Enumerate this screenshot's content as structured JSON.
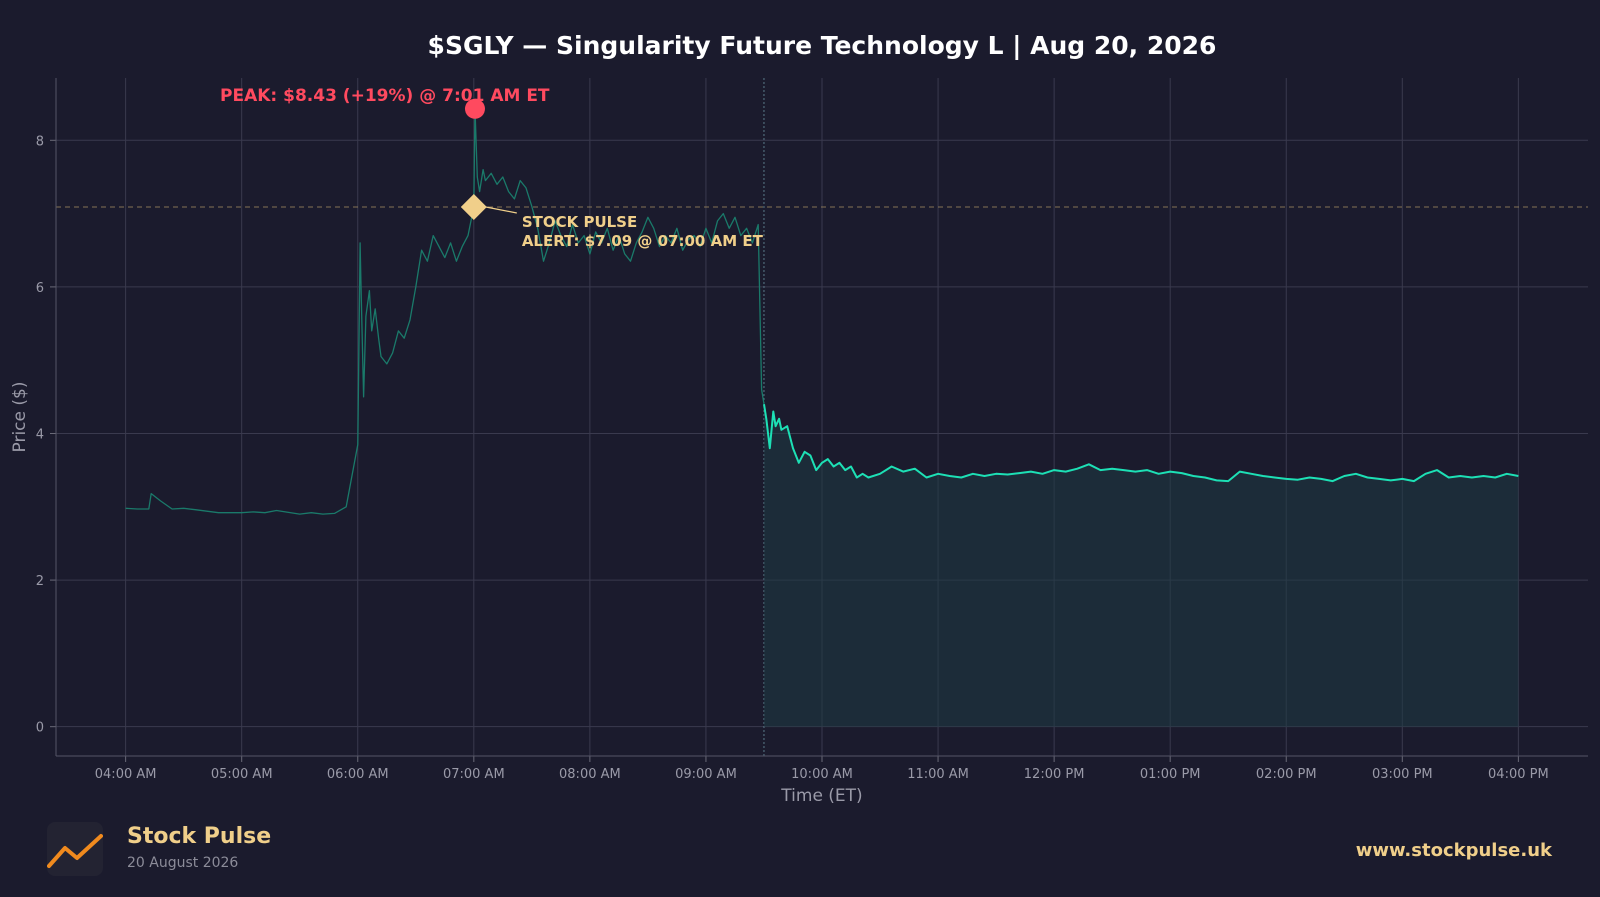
{
  "chart_data": {
    "type": "line",
    "title": "$SGLY — Singularity Future Technology L  |  Aug 20, 2026",
    "xlabel": "Time (ET)",
    "ylabel": "Price ($)",
    "ylim": [
      -0.4,
      8.85
    ],
    "y_ticks": [
      0,
      2,
      4,
      6,
      8
    ],
    "x_ticks": [
      {
        "t": 4,
        "label": "04:00 AM"
      },
      {
        "t": 5,
        "label": "05:00 AM"
      },
      {
        "t": 6,
        "label": "06:00 AM"
      },
      {
        "t": 7,
        "label": "07:00 AM"
      },
      {
        "t": 8,
        "label": "08:00 AM"
      },
      {
        "t": 9,
        "label": "09:00 AM"
      },
      {
        "t": 10,
        "label": "10:00 AM"
      },
      {
        "t": 11,
        "label": "11:00 AM"
      },
      {
        "t": 12,
        "label": "12:00 PM"
      },
      {
        "t": 13,
        "label": "01:00 PM"
      },
      {
        "t": 14,
        "label": "02:00 PM"
      },
      {
        "t": 15,
        "label": "03:00 PM"
      },
      {
        "t": 16,
        "label": "04:00 PM"
      }
    ],
    "xlim": [
      3.4,
      16.6
    ],
    "grid": true,
    "market_open_hour": 9.5,
    "series": [
      {
        "segment": "premarket",
        "color": "#1a7a6a",
        "x": [
          4.0,
          4.1,
          4.2,
          4.22,
          4.3,
          4.4,
          4.5,
          4.6,
          4.8,
          5.0,
          5.1,
          5.2,
          5.3,
          5.5,
          5.6,
          5.7,
          5.8,
          5.9,
          6.0,
          6.02,
          6.03,
          6.05,
          6.07,
          6.1,
          6.12,
          6.15,
          6.18,
          6.2,
          6.25,
          6.3,
          6.35,
          6.4,
          6.45,
          6.5,
          6.55,
          6.6,
          6.65,
          6.7,
          6.75,
          6.8,
          6.85,
          6.9,
          6.95,
          7.0,
          7.01,
          7.03,
          7.05,
          7.08,
          7.1,
          7.15,
          7.2,
          7.25,
          7.3,
          7.35,
          7.4,
          7.45,
          7.5,
          7.55,
          7.6,
          7.65,
          7.7,
          7.75,
          7.8,
          7.85,
          7.9,
          7.95,
          8.0,
          8.05,
          8.1,
          8.15,
          8.2,
          8.25,
          8.3,
          8.35,
          8.4,
          8.45,
          8.5,
          8.55,
          8.6,
          8.65,
          8.7,
          8.75,
          8.8,
          8.85,
          8.9,
          8.95,
          9.0,
          9.05,
          9.1,
          9.15,
          9.2,
          9.25,
          9.3,
          9.35,
          9.4,
          9.45,
          9.48,
          9.5
        ],
        "y": [
          2.98,
          2.97,
          2.97,
          3.18,
          3.08,
          2.97,
          2.98,
          2.96,
          2.92,
          2.92,
          2.93,
          2.92,
          2.95,
          2.9,
          2.92,
          2.9,
          2.91,
          3.0,
          3.85,
          6.6,
          5.9,
          4.5,
          5.6,
          5.95,
          5.4,
          5.7,
          5.3,
          5.05,
          4.95,
          5.1,
          5.4,
          5.3,
          5.55,
          6.0,
          6.5,
          6.35,
          6.7,
          6.55,
          6.4,
          6.6,
          6.35,
          6.55,
          6.7,
          7.09,
          8.43,
          7.5,
          7.3,
          7.6,
          7.45,
          7.55,
          7.4,
          7.5,
          7.3,
          7.2,
          7.45,
          7.35,
          7.1,
          6.8,
          6.35,
          6.6,
          6.9,
          6.7,
          6.55,
          6.85,
          6.6,
          6.7,
          6.45,
          6.75,
          6.6,
          6.8,
          6.5,
          6.7,
          6.45,
          6.35,
          6.6,
          6.75,
          6.95,
          6.8,
          6.55,
          6.7,
          6.6,
          6.8,
          6.5,
          6.65,
          6.7,
          6.55,
          6.8,
          6.6,
          6.9,
          7.0,
          6.8,
          6.95,
          6.7,
          6.8,
          6.6,
          6.85,
          4.6,
          4.4
        ]
      },
      {
        "segment": "regular",
        "color": "#1de0b5",
        "x": [
          9.5,
          9.52,
          9.55,
          9.58,
          9.6,
          9.63,
          9.65,
          9.7,
          9.75,
          9.8,
          9.85,
          9.9,
          9.95,
          10.0,
          10.05,
          10.1,
          10.15,
          10.2,
          10.25,
          10.3,
          10.35,
          10.4,
          10.5,
          10.6,
          10.7,
          10.8,
          10.9,
          11.0,
          11.1,
          11.2,
          11.3,
          11.4,
          11.5,
          11.6,
          11.7,
          11.8,
          11.9,
          12.0,
          12.1,
          12.2,
          12.3,
          12.4,
          12.5,
          12.6,
          12.7,
          12.8,
          12.9,
          13.0,
          13.1,
          13.2,
          13.3,
          13.4,
          13.5,
          13.6,
          13.7,
          13.8,
          13.9,
          14.0,
          14.1,
          14.2,
          14.3,
          14.4,
          14.5,
          14.6,
          14.7,
          14.8,
          14.9,
          15.0,
          15.1,
          15.2,
          15.3,
          15.4,
          15.5,
          15.6,
          15.7,
          15.8,
          15.9,
          16.0
        ],
        "y": [
          4.4,
          4.2,
          3.8,
          4.3,
          4.1,
          4.2,
          4.05,
          4.1,
          3.8,
          3.6,
          3.75,
          3.7,
          3.5,
          3.6,
          3.65,
          3.55,
          3.6,
          3.5,
          3.55,
          3.4,
          3.45,
          3.4,
          3.45,
          3.55,
          3.48,
          3.52,
          3.4,
          3.45,
          3.42,
          3.4,
          3.45,
          3.42,
          3.45,
          3.44,
          3.46,
          3.48,
          3.45,
          3.5,
          3.48,
          3.52,
          3.58,
          3.5,
          3.52,
          3.5,
          3.48,
          3.5,
          3.45,
          3.48,
          3.46,
          3.42,
          3.4,
          3.36,
          3.35,
          3.48,
          3.45,
          3.42,
          3.4,
          3.38,
          3.37,
          3.4,
          3.38,
          3.35,
          3.42,
          3.45,
          3.4,
          3.38,
          3.36,
          3.38,
          3.35,
          3.45,
          3.5,
          3.4,
          3.42,
          3.4,
          3.42,
          3.4,
          3.45,
          3.42
        ]
      }
    ],
    "annotations": {
      "peak": {
        "x": 7.01,
        "y": 8.43,
        "label": "PEAK: $8.43 (+19%) @ 7:01 AM ET",
        "color": "#ff4a5f"
      },
      "alert": {
        "x": 7.0,
        "y": 7.09,
        "label_line1": "STOCK PULSE",
        "label_line2": "ALERT: $7.09 @ 07:00 AM ET",
        "color": "#f0cf8a"
      },
      "alert_level": 7.09
    }
  },
  "footer": {
    "brand": "Stock Pulse",
    "date": "20 August 2026",
    "url": "www.stockpulse.uk"
  }
}
